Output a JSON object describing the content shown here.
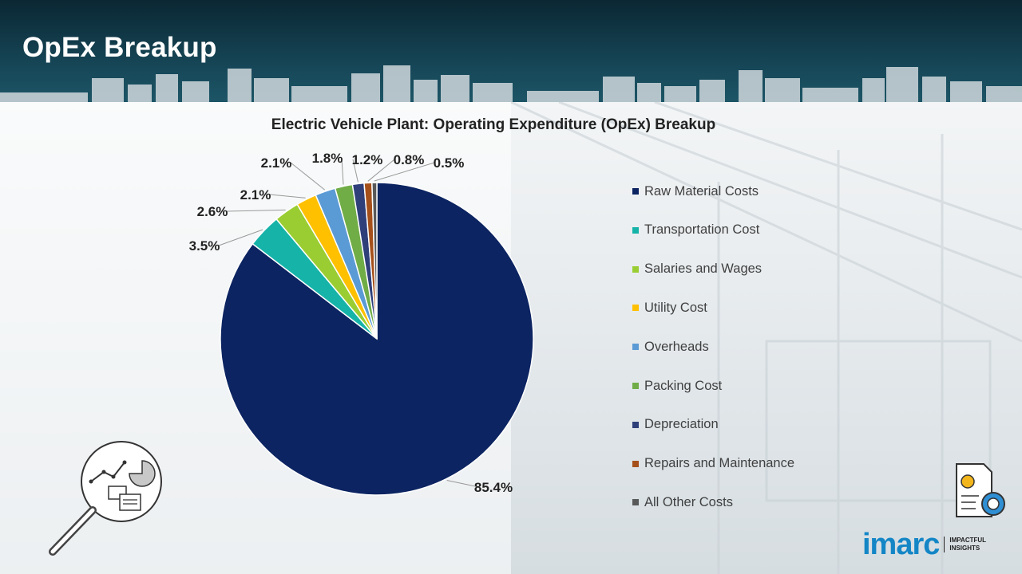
{
  "page": {
    "title": "OpEx Breakup"
  },
  "brand": {
    "name": "imarc",
    "tagline_line1": "IMPACTFUL",
    "tagline_line2": "INSIGHTS"
  },
  "colors": {
    "header_bg": "#17495a",
    "brand_blue": "#1486c6"
  },
  "chart_data": {
    "type": "pie",
    "title": "Electric Vehicle Plant: Operating Expenditure (OpEx) Breakup",
    "start_angle_deg": 0,
    "direction": "clockwise",
    "legend_position": "right",
    "slices": [
      {
        "label": "Raw Material Costs",
        "value": 85.4,
        "display": "85.4%",
        "color": "#0c2461"
      },
      {
        "label": "Transportation Cost",
        "value": 3.5,
        "display": "3.5%",
        "color": "#16b3a9"
      },
      {
        "label": "Salaries and Wages",
        "value": 2.6,
        "display": "2.6%",
        "color": "#9acd32"
      },
      {
        "label": "Utility Cost",
        "value": 2.1,
        "display": "2.1%",
        "color": "#ffc000"
      },
      {
        "label": "Overheads",
        "value": 2.1,
        "display": "2.1%",
        "color": "#5b9bd5"
      },
      {
        "label": "Packing Cost",
        "value": 1.8,
        "display": "1.8%",
        "color": "#70ad47"
      },
      {
        "label": "Depreciation",
        "value": 1.2,
        "display": "1.2%",
        "color": "#2f3f7a"
      },
      {
        "label": "Repairs and Maintenance",
        "value": 0.8,
        "display": "0.8%",
        "color": "#a5501b"
      },
      {
        "label": "All Other Costs",
        "value": 0.5,
        "display": "0.5%",
        "color": "#595959"
      }
    ]
  }
}
